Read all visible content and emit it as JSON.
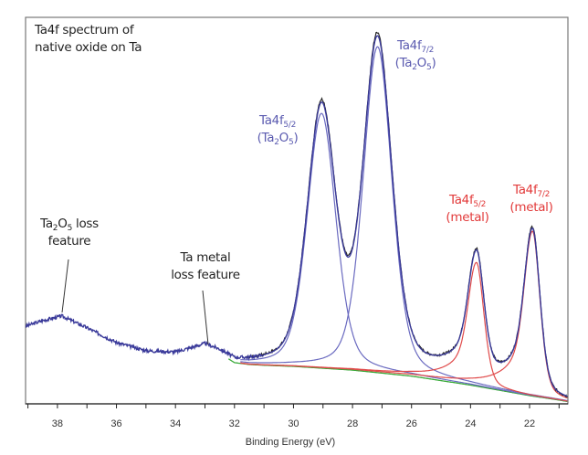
{
  "chart_data": {
    "type": "line",
    "title": "Ta4f spectrum of native oxide on Ta",
    "xlabel": "Binding Energy (eV)",
    "ylabel": "",
    "xlim": [
      39.08,
      20.7
    ],
    "x_reversed": true,
    "ylim": [
      0,
      100
    ],
    "x_ticks": [
      38,
      36,
      34,
      32,
      30,
      28,
      26,
      24,
      22
    ],
    "x_tick_labels": [
      "38",
      "36",
      "34",
      "32",
      "30",
      "28",
      "26",
      "24",
      "22"
    ],
    "grid": false,
    "background": {
      "x": [
        39.08,
        38.5,
        37.85,
        37,
        36,
        35,
        34,
        33,
        32.5,
        32,
        31.5,
        31,
        30,
        29,
        28,
        27,
        26,
        25,
        24,
        23,
        22,
        21,
        20.7
      ],
      "y": [
        20.5,
        22,
        23.2,
        20,
        16,
        13.7,
        13.2,
        15.2,
        13.5,
        11,
        10.5,
        10.3,
        10,
        9.5,
        9,
        8.2,
        7.4,
        6.2,
        5,
        3.6,
        2.2,
        1,
        0.6
      ]
    },
    "components": [
      {
        "label": "Ta4f5/2 (Ta2O5)",
        "center": 29.05,
        "height": 68,
        "fwhm": 1.15,
        "color": "#6a6ac0"
      },
      {
        "label": "Ta4f7/2 (Ta2O5)",
        "center": 27.15,
        "height": 87,
        "fwhm": 1.15,
        "color": "#6a6ac0"
      },
      {
        "label": "Ta4f5/2 (metal)",
        "center": 23.8,
        "height": 33,
        "fwhm": 0.6,
        "tail": 2.6,
        "color": "#e04a4a"
      },
      {
        "label": "Ta4f7/2 (metal)",
        "center": 21.9,
        "height": 44,
        "fwhm": 0.6,
        "tail": 2.6,
        "color": "#e04a4a"
      }
    ],
    "colors": {
      "experimental": "#222222",
      "envelope": "#3a3a9a",
      "background": "#3aaa3a"
    }
  },
  "annotations": {
    "title_line1": "Ta4f spectrum of",
    "title_line2": "native oxide on Ta",
    "oxide_loss": {
      "line1_a": "Ta",
      "line1_sub1": "2",
      "line1_b": "O",
      "line1_sub2": "5",
      "line1_c": " loss",
      "line2": "feature"
    },
    "metal_loss": {
      "line1": "Ta metal",
      "line2": "loss feature"
    },
    "peak_oxide_52": {
      "main": "Ta4f",
      "sub": "5/2",
      "p1": "(Ta",
      "s1": "2",
      "p2": "O",
      "s2": "5",
      "p3": ")"
    },
    "peak_oxide_72": {
      "main": "Ta4f",
      "sub": "7/2",
      "p1": "(Ta",
      "s1": "2",
      "p2": "O",
      "s2": "5",
      "p3": ")"
    },
    "peak_metal_52": {
      "main": "Ta4f",
      "sub": "5/2",
      "line2": "(metal)"
    },
    "peak_metal_72": {
      "main": "Ta4f",
      "sub": "7/2",
      "line2": "(metal)"
    }
  }
}
